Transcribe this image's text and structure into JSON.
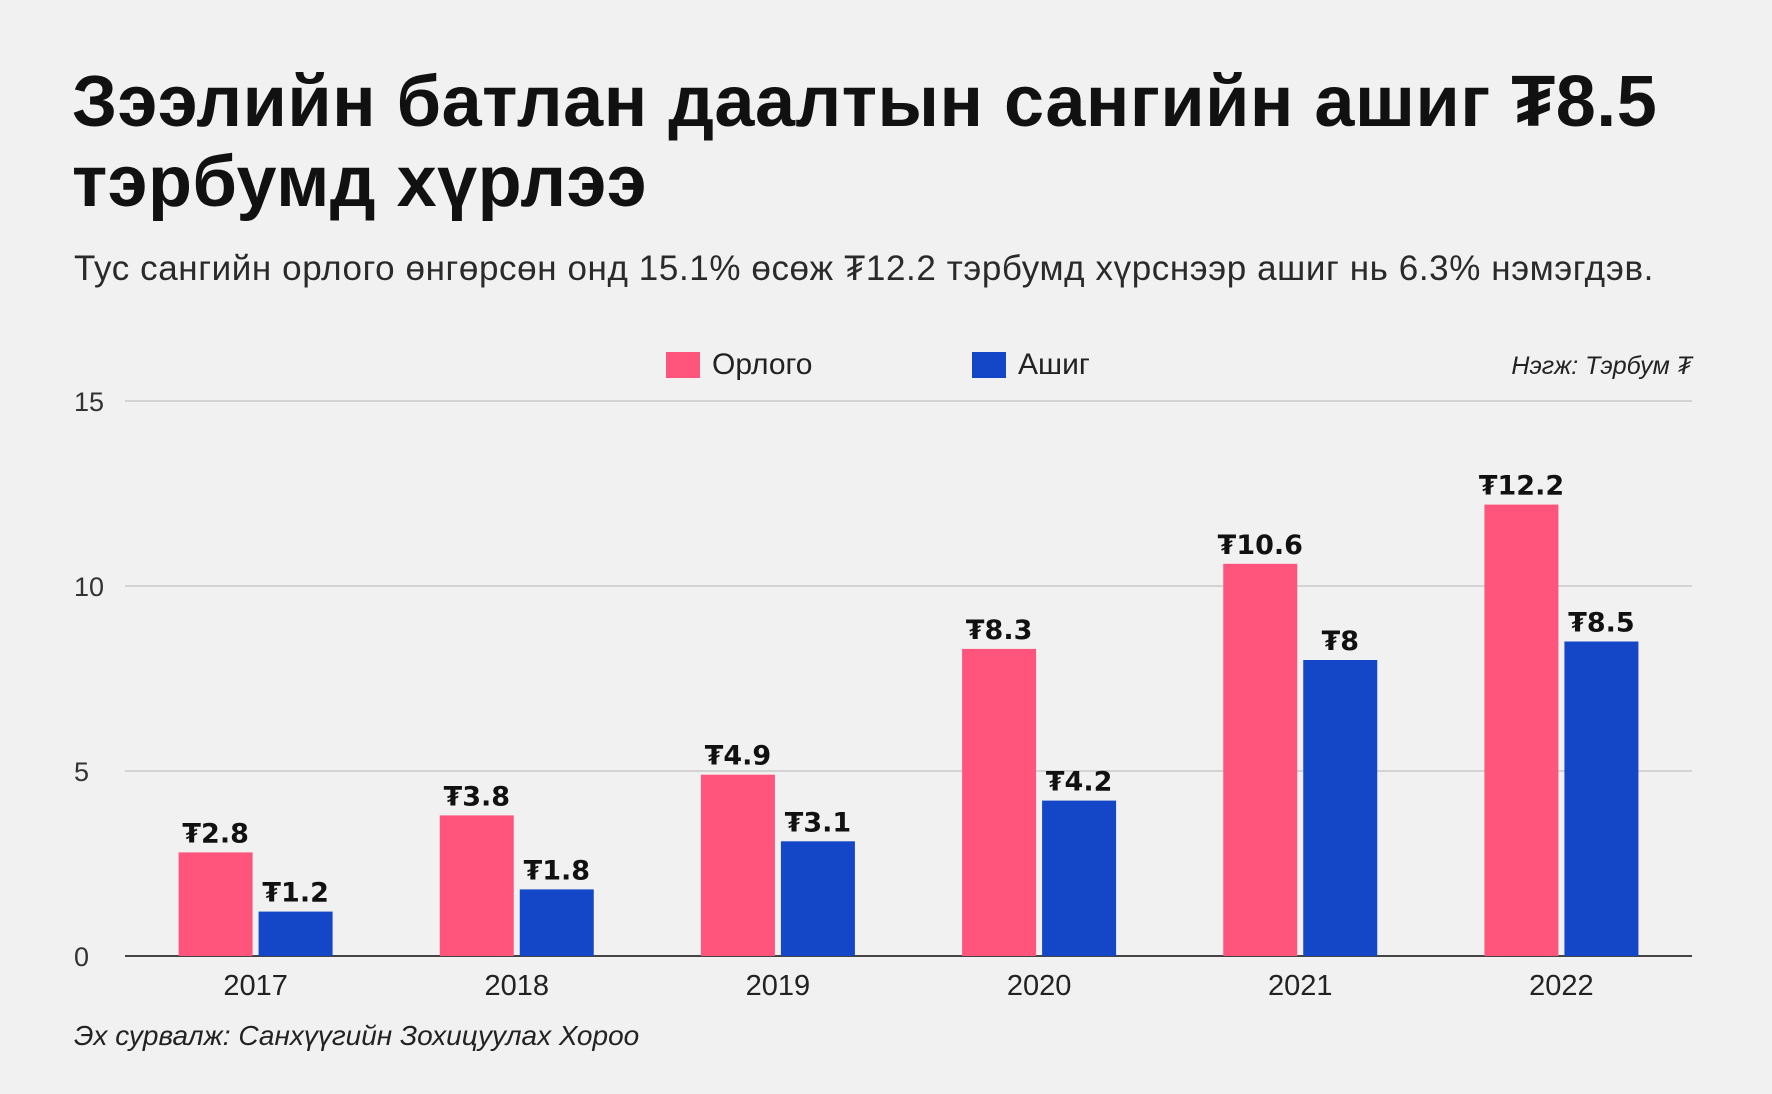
{
  "title": "Зээлийн батлан даалтын сангийн ашиг ₮8.5 тэрбумд хүрлээ",
  "subtitle": "Тус сангийн орлого өнгөрсөн онд 15.1% өсөж ₮12.2 тэрбумд хүрснээр ашиг нь 6.3% нэмэгдэв.",
  "unit_note": "Нэгж: Тэрбум ₮",
  "source": "Эх сурвалж: Санхүүгийн Зохицуулах Хороо",
  "colors": {
    "background": "#f1f1f1",
    "revenue": "#ff557c",
    "profit": "#1446c8",
    "grid": "#d3d3d3",
    "axis": "#444444"
  },
  "chart_data": {
    "type": "bar",
    "categories": [
      "2017",
      "2018",
      "2019",
      "2020",
      "2021",
      "2022"
    ],
    "series": [
      {
        "name": "Орлого",
        "values": [
          2.8,
          3.8,
          4.9,
          8.3,
          10.6,
          12.2
        ],
        "labels": [
          "₮2.8",
          "₮3.8",
          "₮4.9",
          "₮8.3",
          "₮10.6",
          "₮12.2"
        ]
      },
      {
        "name": "Ашиг",
        "values": [
          1.2,
          1.8,
          3.1,
          4.2,
          8,
          8.5
        ],
        "labels": [
          "₮1.2",
          "₮1.8",
          "₮3.1",
          "₮4.2",
          "₮8",
          "₮8.5"
        ]
      }
    ],
    "yticks": [
      "0",
      "5",
      "10",
      "15"
    ],
    "ylim": [
      0,
      15
    ],
    "grid": true,
    "legend_position": "top-center"
  }
}
